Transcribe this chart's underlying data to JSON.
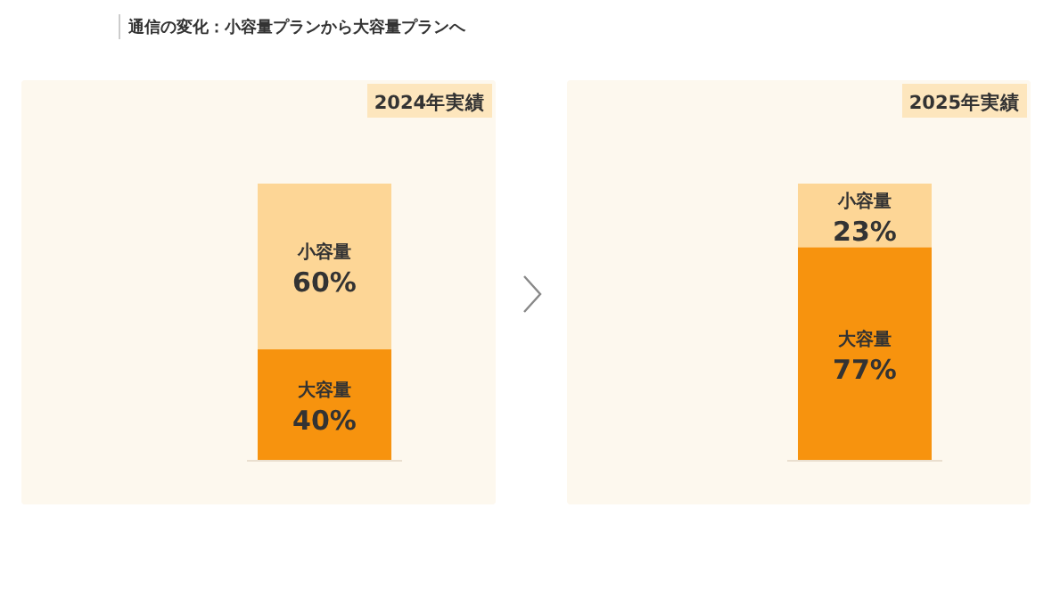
{
  "chart_data": [
    {
      "type": "bar",
      "stacked": true,
      "title": "2024年実績",
      "annotations": [
        "通信の変化：小容量プランから大容量プランへ"
      ],
      "categories": [
        null
      ],
      "series": [
        {
          "name": "大容量",
          "color": "#f7930e",
          "values": [
            40
          ],
          "value_labels": [
            "40%"
          ]
        },
        {
          "name": "小容量",
          "color": "#fdd696",
          "values": [
            60
          ],
          "value_labels": [
            "60%"
          ]
        }
      ]
    },
    {
      "type": "bar",
      "stacked": true,
      "title": "2025年実績",
      "categories": [
        null
      ],
      "series": [
        {
          "name": "大容量",
          "color": "#f7930e",
          "values": [
            77
          ],
          "value_labels": [
            "77%"
          ]
        },
        {
          "name": "小容量",
          "color": "#fdd696",
          "values": [
            23
          ],
          "value_labels": [
            "23%"
          ]
        }
      ]
    }
  ]
}
